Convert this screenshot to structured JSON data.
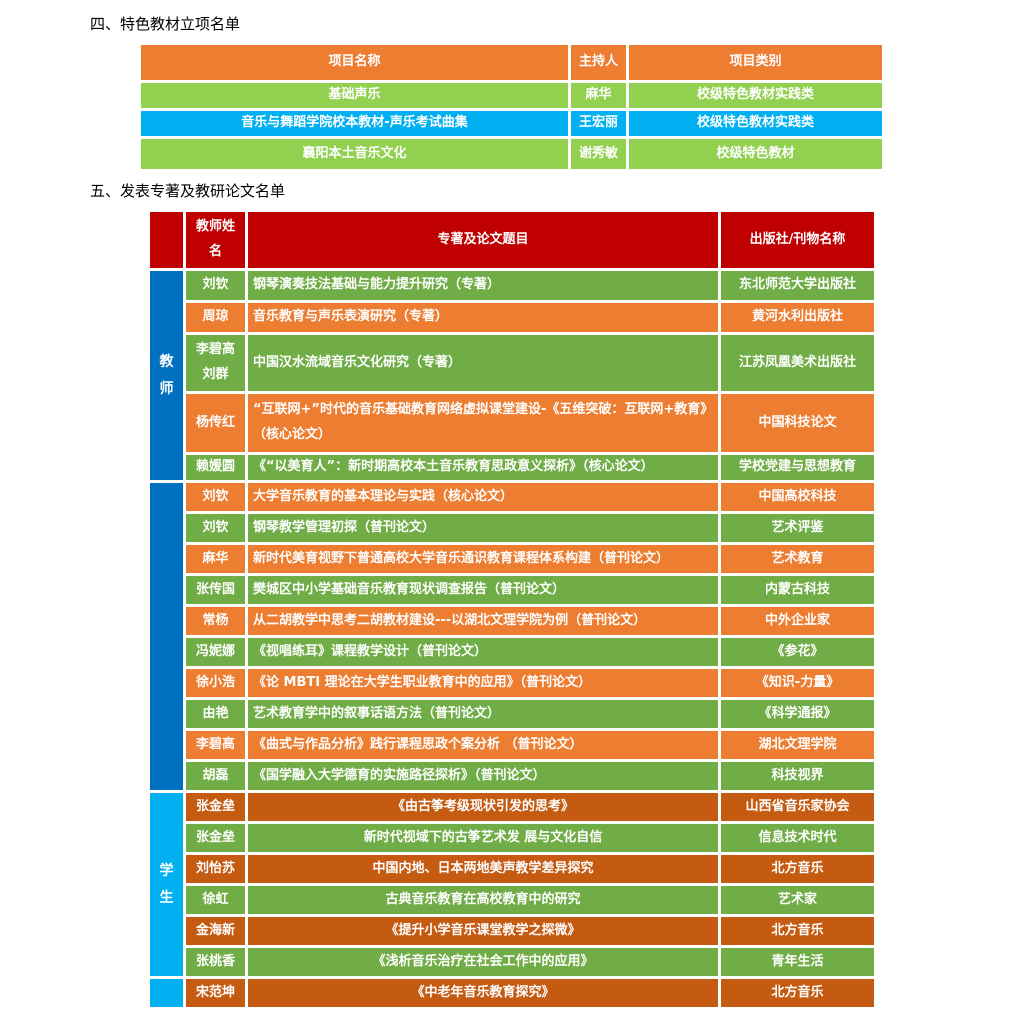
{
  "section4": {
    "title": "四、特色教材立项名单",
    "headers": [
      "项目名称",
      "主持人",
      "项目类别"
    ],
    "rows": [
      {
        "name": "基础声乐",
        "host": "麻华",
        "type": "校级特色教材实践类",
        "color": "#92d050"
      },
      {
        "name": "音乐与舞蹈学院校本教材-声乐考试曲集",
        "host": "王宏丽",
        "type": "校级特色教材实践类",
        "color": "#00b0f0"
      },
      {
        "name": "襄阳本土音乐文化",
        "host": "谢秀敏",
        "type": "校级特色教材",
        "color": "#92d050"
      }
    ]
  },
  "section5": {
    "title": "五、发表专著及教研论文名单",
    "headers": [
      "",
      "教师姓名",
      "专著及论文题目",
      "出版社/刊物名称"
    ],
    "groups": [
      {
        "label": "教师",
        "span": 5,
        "color": "#0070c0"
      },
      {
        "label": "",
        "span": 10,
        "color": "#0070c0"
      },
      {
        "label": "学生",
        "span": 6,
        "color": "#00b0f0"
      },
      {
        "label": "",
        "span": 1,
        "color": "#00b0f0"
      }
    ],
    "rows": [
      {
        "name": "刘钦",
        "title": "钢琴演奏技法基础与能力提升研究（专著）",
        "pub": "东北师范大学出版社",
        "color": "green"
      },
      {
        "name": "周琼",
        "title": "音乐教育与声乐表演研究（专著）",
        "pub": "黄河水利出版社",
        "color": "orange"
      },
      {
        "name": "李碧高 刘群",
        "title": "中国汉水流域音乐文化研究（专著）",
        "pub": "江苏凤凰美术出版社",
        "color": "green"
      },
      {
        "name": "杨传红",
        "title": "“互联网+”时代的音乐基础教育网络虚拟课堂建设-《五维突破：互联网+教育》（核心论文）",
        "pub": "中国科技论文",
        "color": "orange"
      },
      {
        "name": "赖媛圆",
        "title": "《“以美育人”：新时期高校本土音乐教育思政意义探析》（核心论文）",
        "pub": "学校党建与思想教育",
        "color": "green"
      },
      {
        "name": "刘钦",
        "title": "大学音乐教育的基本理论与实践（核心论文）",
        "pub": "中国高校科技",
        "color": "orange"
      },
      {
        "name": "刘钦",
        "title": "钢琴教学管理初探（普刊论文）",
        "pub": "艺术评鉴",
        "color": "green"
      },
      {
        "name": "麻华",
        "title": "新时代美育视野下普通高校大学音乐通识教育课程体系构建（普刊论文）",
        "pub": "艺术教育",
        "color": "orange"
      },
      {
        "name": "张传国",
        "title": "樊城区中小学基础音乐教育现状调查报告（普刊论文）",
        "pub": "内蒙古科技",
        "color": "green"
      },
      {
        "name": "常杨",
        "title": "从二胡教学中思考二胡教材建设---以湖北文理学院为例（普刊论文）",
        "pub": "中外企业家",
        "color": "orange"
      },
      {
        "name": "冯妮娜",
        "title": "《视唱练耳》课程教学设计（普刊论文）",
        "pub": "《参花》",
        "color": "green"
      },
      {
        "name": "徐小浩",
        "title": "《论 MBTI 理论在大学生职业教育中的应用》（普刊论文）",
        "pub": "《知识-力量》",
        "color": "orange"
      },
      {
        "name": "由艳",
        "title": "艺术教育学中的叙事话语方法（普刊论文）",
        "pub": "《科学通报》",
        "color": "green"
      },
      {
        "name": "李碧高",
        "title": "《曲式与作品分析》践行课程思政个案分析 （普刊论文）",
        "pub": "湖北文理学院",
        "color": "orange"
      },
      {
        "name": "胡磊",
        "title": "《国学融入大学德育的实施路径探析》（普刊论文）",
        "pub": "科技视界",
        "color": "green"
      },
      {
        "name": "张金垒",
        "title": "《由古筝考级现状引发的思考》",
        "pub": "山西省音乐家协会",
        "color": "darkorange"
      },
      {
        "name": "张金垒",
        "title": "新时代视域下的古筝艺术发 展与文化自信",
        "pub": "信息技术时代",
        "color": "green"
      },
      {
        "name": "刘怡苏",
        "title": "中国内地、日本两地美声教学差异探究",
        "pub": "北方音乐",
        "color": "darkorange"
      },
      {
        "name": "徐虹",
        "title": "古典音乐教育在高校教育中的研究",
        "pub": "艺术家",
        "color": "green"
      },
      {
        "name": "金海新",
        "title": "《提升小学音乐课堂教学之探微》",
        "pub": "北方音乐",
        "color": "darkorange"
      },
      {
        "name": "张桃香",
        "title": "《浅析音乐治疗在社会工作中的应用》",
        "pub": "青年生活",
        "color": "green"
      },
      {
        "name": "宋范坤",
        "title": "《中老年音乐教育探究》",
        "pub": "北方音乐",
        "color": "darkorange"
      }
    ]
  },
  "colors": {
    "orange": "#ed7d31",
    "green": "#70ad47",
    "darkorange": "#c55a11",
    "header_red": "#c00000",
    "light_green": "#92d050",
    "blue": "#00b0f0",
    "dark_blue": "#0070c0"
  }
}
